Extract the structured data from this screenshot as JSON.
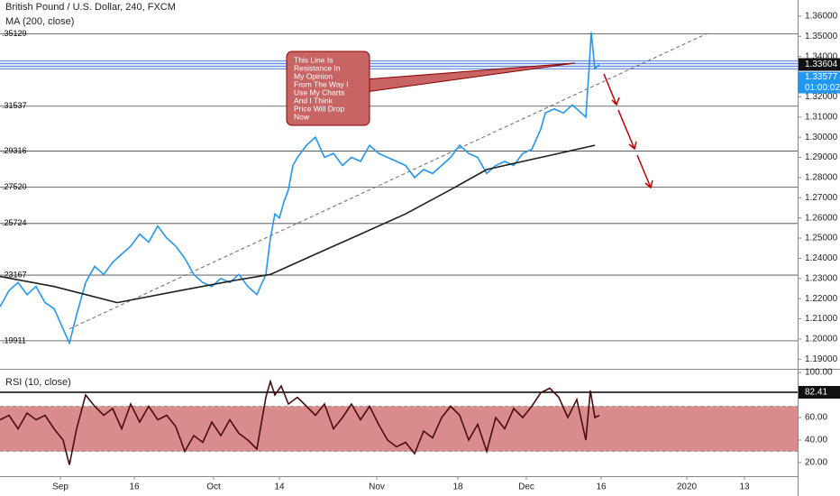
{
  "chart_data": [
    {
      "type": "line",
      "title": "British Pound / U.S. Dollar, 240, FXCM",
      "xlim": [
        0,
        177
      ],
      "xticks": [
        {
          "value": 13.4,
          "label": "Sep"
        },
        {
          "value": 29.8,
          "label": "16"
        },
        {
          "value": 47.4,
          "label": "Oct"
        },
        {
          "value": 62,
          "label": "14"
        },
        {
          "value": 83.6,
          "label": "Nov"
        },
        {
          "value": 101.6,
          "label": "18"
        },
        {
          "value": 116.8,
          "label": "Dec"
        },
        {
          "value": 133.4,
          "label": "16"
        },
        {
          "value": 152.4,
          "label": "2020"
        },
        {
          "value": 165.2,
          "label": "13"
        }
      ],
      "ylim": [
        1.187,
        1.368
      ],
      "yticks": [
        {
          "value": 1.19,
          "label": "1.19000"
        },
        {
          "value": 1.2,
          "label": "1.20000"
        },
        {
          "value": 1.21,
          "label": "1.21000"
        },
        {
          "value": 1.22,
          "label": "1.22000"
        },
        {
          "value": 1.23,
          "label": "1.23000"
        },
        {
          "value": 1.24,
          "label": "1.24000"
        },
        {
          "value": 1.25,
          "label": "1.25000"
        },
        {
          "value": 1.26,
          "label": "1.26000"
        },
        {
          "value": 1.27,
          "label": "1.27000"
        },
        {
          "value": 1.28,
          "label": "1.28000"
        },
        {
          "value": 1.29,
          "label": "1.29000"
        },
        {
          "value": 1.3,
          "label": "1.30000"
        },
        {
          "value": 1.31,
          "label": "1.31000"
        },
        {
          "value": 1.32,
          "label": "1.32000"
        },
        {
          "value": 1.34,
          "label": "1.34000"
        },
        {
          "value": 1.35,
          "label": "1.35000"
        },
        {
          "value": 1.36,
          "label": "1.36000"
        }
      ],
      "series": [
        {
          "color": "#2196f3",
          "x": [
            0,
            2,
            4,
            6,
            8,
            10,
            12,
            14,
            15.4,
            17,
            19,
            21,
            23,
            25,
            27,
            29,
            31,
            33,
            35,
            37,
            39,
            41,
            43,
            45,
            47,
            49,
            51,
            53,
            55,
            57,
            59,
            60,
            61,
            62,
            63,
            64,
            65,
            66,
            68,
            70,
            72,
            74,
            76,
            78,
            80,
            82,
            84,
            86,
            88,
            90,
            92,
            94,
            96,
            98,
            100,
            102,
            104,
            106,
            108,
            110,
            112,
            114,
            116,
            118,
            120,
            121,
            123,
            125,
            127,
            129,
            130,
            130.6,
            131.2,
            132,
            133
          ],
          "values": [
            1.216,
            1.224,
            1.228,
            1.222,
            1.226,
            1.218,
            1.215,
            1.205,
            1.198,
            1.212,
            1.228,
            1.236,
            1.232,
            1.238,
            1.242,
            1.246,
            1.252,
            1.248,
            1.256,
            1.25,
            1.246,
            1.24,
            1.232,
            1.228,
            1.226,
            1.23,
            1.228,
            1.232,
            1.226,
            1.222,
            1.232,
            1.25,
            1.262,
            1.26,
            1.268,
            1.274,
            1.286,
            1.29,
            1.296,
            1.3,
            1.29,
            1.292,
            1.286,
            1.29,
            1.288,
            1.296,
            1.292,
            1.29,
            1.288,
            1.286,
            1.28,
            1.284,
            1.282,
            1.286,
            1.29,
            1.296,
            1.292,
            1.29,
            1.282,
            1.286,
            1.288,
            1.286,
            1.292,
            1.294,
            1.304,
            1.312,
            1.314,
            1.312,
            1.316,
            1.312,
            1.31,
            1.33,
            1.352,
            1.334,
            1.336
          ]
        },
        {
          "name": "MA (200, close)",
          "color": "#1e1e1e",
          "x": [
            0,
            12,
            26,
            40,
            52,
            60,
            70,
            80,
            90,
            100,
            108,
            116,
            124,
            132
          ],
          "values": [
            1.231,
            1.226,
            1.218,
            1.224,
            1.229,
            1.232,
            1.242,
            1.252,
            1.262,
            1.274,
            1.284,
            1.288,
            1.292,
            1.296
          ]
        }
      ],
      "levels": [
        {
          "value": 1.35129,
          "label": ".35129"
        },
        {
          "value": 1.31537,
          "label": ".31537"
        },
        {
          "value": 1.29316,
          "label": ".29316"
        },
        {
          "value": 1.2752,
          "label": ".27520"
        },
        {
          "value": 1.25724,
          "label": ".25724"
        },
        {
          "value": 1.23167,
          "label": ".23167"
        },
        {
          "value": 1.19911,
          "label": ".19911"
        }
      ],
      "trendline": {
        "x": [
          15.4,
          157
        ],
        "values": [
          1.205,
          1.3515
        ]
      },
      "resistance": 1.33604,
      "last_price": {
        "value": 1.33604,
        "label": "1.33604"
      },
      "bid_label": "1.33577",
      "countdown": "01:00:02",
      "annotation": [
        "This Line Is",
        "Resistance In",
        "My Opinion",
        "From The Way I",
        "Use My Charts",
        "And I Think",
        "Price Will Drop",
        "Now"
      ]
    },
    {
      "type": "line",
      "title": "RSI (10, close)",
      "ylim": [
        6.4,
        102.4
      ],
      "yticks": [
        {
          "value": 20,
          "label": "20.00"
        },
        {
          "value": 40,
          "label": "40.00"
        },
        {
          "value": 60,
          "label": "60.00"
        },
        {
          "value": 80,
          "label": "80.00"
        },
        {
          "value": 100,
          "label": "100.00"
        }
      ],
      "band": [
        30,
        70
      ],
      "band_color": "#d47878",
      "level": {
        "value": 82.41,
        "label": "82.41"
      },
      "series": [
        {
          "color": "#4a0c0c",
          "x": [
            0,
            2,
            4,
            6,
            8,
            10,
            12,
            14,
            15.4,
            17,
            19,
            21,
            23,
            25,
            27,
            29,
            31,
            33,
            35,
            37,
            39,
            41,
            43,
            45,
            47,
            49,
            51,
            53,
            55,
            57,
            59,
            60,
            61,
            62.4,
            64,
            66,
            68,
            70,
            72,
            74,
            76,
            78,
            80,
            82,
            84,
            86,
            88,
            90,
            92,
            94,
            96,
            98,
            100,
            102,
            104,
            106,
            108,
            110,
            112,
            114,
            116,
            118,
            120,
            122,
            124,
            126,
            128,
            130,
            131,
            132,
            133
          ],
          "values": [
            58,
            62,
            50,
            64,
            58,
            62,
            50,
            40,
            18,
            50,
            80,
            70,
            62,
            68,
            50,
            72,
            56,
            70,
            58,
            62,
            52,
            30,
            44,
            38,
            56,
            44,
            58,
            46,
            40,
            32,
            78,
            92,
            80,
            88,
            72,
            78,
            70,
            62,
            72,
            50,
            60,
            72,
            58,
            70,
            54,
            40,
            34,
            38,
            28,
            48,
            42,
            60,
            70,
            62,
            40,
            54,
            30,
            60,
            50,
            68,
            60,
            70,
            82,
            86,
            78,
            60,
            76,
            40,
            84,
            60,
            62
          ]
        }
      ]
    }
  ]
}
